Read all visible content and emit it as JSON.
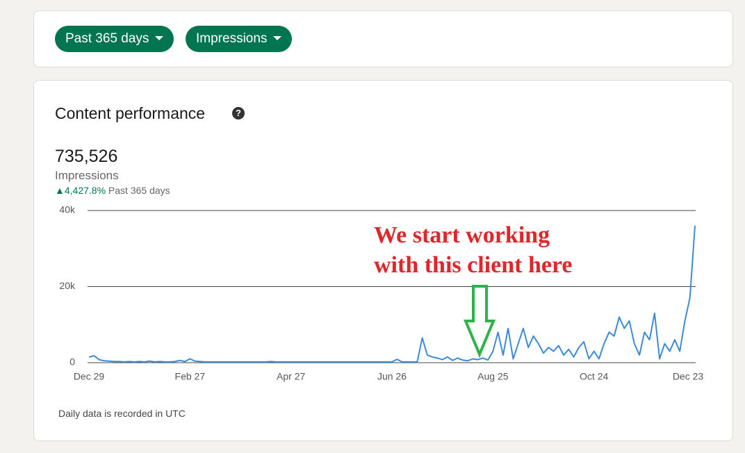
{
  "filters": {
    "period": "Past 365 days",
    "metric": "Impressions"
  },
  "summary": {
    "total": "735,526",
    "total_label": "Impressions",
    "change": "4,427.8%",
    "change_period": "Past 365 days"
  },
  "footnote": "Daily data is recorded in UTC",
  "annotation": [
    "We start working",
    "with this client here"
  ],
  "chart_data": {
    "type": "line",
    "title": "Content performance",
    "categories": [
      "Dec 29",
      null,
      null,
      null,
      null,
      null,
      null,
      null,
      null,
      null,
      null,
      null,
      null,
      null,
      null,
      null,
      null,
      null,
      null,
      null,
      "Feb 27",
      null,
      null,
      null,
      null,
      null,
      null,
      null,
      null,
      null,
      null,
      null,
      null,
      null,
      null,
      null,
      null,
      null,
      null,
      null,
      "Apr 27",
      null,
      null,
      null,
      null,
      null,
      null,
      null,
      null,
      null,
      null,
      null,
      null,
      null,
      null,
      null,
      null,
      null,
      null,
      null,
      "Jun 26",
      null,
      null,
      null,
      null,
      null,
      null,
      null,
      null,
      null,
      null,
      null,
      null,
      null,
      null,
      null,
      null,
      null,
      null,
      null,
      "Aug 25",
      null,
      null,
      null,
      null,
      null,
      null,
      null,
      null,
      null,
      null,
      null,
      null,
      null,
      null,
      null,
      null,
      null,
      null,
      null,
      "Oct 24",
      null,
      null,
      null,
      null,
      null,
      null,
      null,
      null,
      null,
      null,
      null,
      null,
      null,
      null,
      null,
      null,
      null,
      null,
      null,
      "Dec 23"
    ],
    "values": [
      1500,
      1800,
      800,
      500,
      400,
      300,
      300,
      200,
      300,
      200,
      300,
      200,
      400,
      200,
      300,
      200,
      200,
      300,
      600,
      300,
      1000,
      400,
      300,
      200,
      200,
      200,
      200,
      200,
      200,
      200,
      200,
      200,
      200,
      200,
      200,
      200,
      300,
      200,
      200,
      200,
      200,
      200,
      200,
      200,
      200,
      200,
      200,
      200,
      200,
      200,
      200,
      200,
      200,
      200,
      200,
      200,
      200,
      200,
      200,
      200,
      200,
      900,
      200,
      200,
      200,
      200,
      6500,
      2000,
      1500,
      1200,
      800,
      1500,
      600,
      1200,
      700,
      500,
      1000,
      800,
      1200,
      700,
      3000,
      8000,
      2000,
      9000,
      1000,
      5000,
      9000,
      4000,
      7000,
      5000,
      2500,
      4000,
      3000,
      4500,
      2000,
      3500,
      1500,
      4000,
      5500,
      1000,
      3000,
      1000,
      5000,
      8000,
      7000,
      12000,
      9000,
      11000,
      5000,
      2000,
      8000,
      6000,
      13000,
      1000,
      5000,
      3000,
      6000,
      3000,
      11000,
      17000,
      36000
    ],
    "color": "#3b8ad8",
    "ylim": [
      0,
      40000
    ],
    "yticks": [
      0,
      {
        "value": 20000,
        "label": "20k"
      },
      {
        "value": 40000,
        "label": "40k"
      }
    ],
    "grid": true
  }
}
